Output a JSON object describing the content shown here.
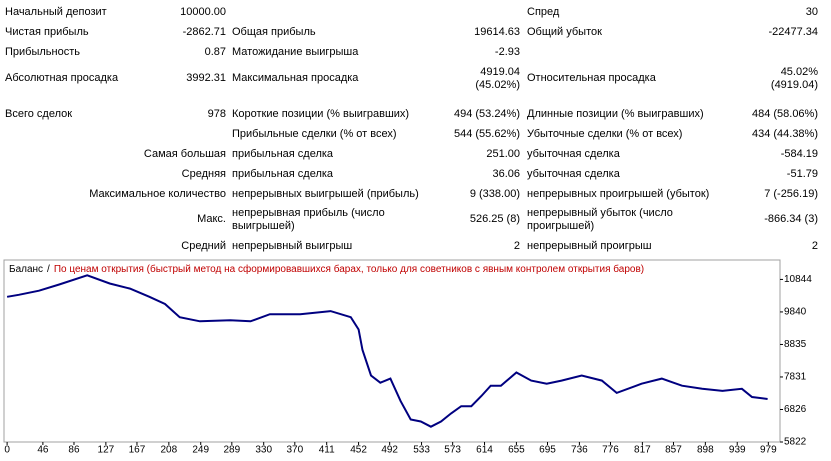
{
  "report": {
    "rows": [
      [
        "Начальный депозит",
        "10000.00",
        null,
        null,
        "Спред",
        "30"
      ],
      [
        "Чистая прибыль",
        "-2862.71",
        "Общая прибыль",
        "19614.63",
        "Общий убыток",
        "-22477.34"
      ],
      [
        "Прибыльность",
        "0.87",
        "Матожидание выигрыша",
        "-2.93",
        null,
        null
      ],
      [
        "Абсолютная просадка",
        "3992.31",
        "Максимальная просадка",
        [
          "4919.04",
          "(45.02%)"
        ],
        "Относительная просадка",
        [
          "45.02%",
          "(4919.04)"
        ]
      ],
      [
        "Всего сделок",
        "978",
        "Короткие позиции (% выигравших)",
        "494 (53.24%)",
        "Длинные позиции (% выигравших)",
        "484 (58.06%)"
      ],
      [
        null,
        null,
        "Прибыльные сделки (% от всех)",
        "544 (55.62%)",
        "Убыточные сделки (% от всех)",
        "434 (44.38%)"
      ],
      [
        null,
        "Самая большая",
        "прибыльная сделка",
        "251.00",
        "убыточная сделка",
        "-584.19"
      ],
      [
        null,
        "Средняя",
        "прибыльная сделка",
        "36.06",
        "убыточная сделка",
        "-51.79"
      ],
      [
        null,
        "Максимальное количество",
        "непрерывных выигрышей (прибыль)",
        "9 (338.00)",
        "непрерывных проигрышей (убыток)",
        "7 (-256.19)"
      ],
      [
        null,
        "Макс.",
        [
          "непрерывная прибыль (число",
          "выигрышей)"
        ],
        "526.25 (8)",
        [
          "непрерывный убыток (число",
          "проигрышей)"
        ],
        "-866.34 (3)"
      ],
      [
        null,
        "Средний",
        "непрерывный выигрыш",
        "2",
        "непрерывный проигрыш",
        "2"
      ]
    ]
  },
  "chart_data": {
    "type": "line",
    "separator": "/",
    "subtitle": "По ценам открытия (быстрый метод на сформировавшихся барах, только для советников с явным контролем открытия баров)",
    "x": [
      0,
      15,
      41,
      67,
      103,
      132,
      158,
      183,
      203,
      222,
      248,
      287,
      313,
      338,
      377,
      416,
      442,
      452,
      457,
      468,
      480,
      493,
      506,
      519,
      532,
      545,
      558,
      571,
      584,
      597,
      610,
      622,
      635,
      655,
      674,
      694,
      713,
      739,
      765,
      784,
      816,
      842,
      868,
      894,
      920,
      945,
      958,
      978
    ],
    "series": [
      {
        "name": "Баланс",
        "color": "#000080",
        "values": [
          10307,
          10370,
          10497,
          10686,
          10970,
          10718,
          10560,
          10307,
          10086,
          9676,
          9549,
          9581,
          9549,
          9770,
          9770,
          9865,
          9676,
          9297,
          8665,
          7875,
          7654,
          7781,
          7086,
          6518,
          6455,
          6296,
          6455,
          6707,
          6928,
          6928,
          7244,
          7560,
          7560,
          7970,
          7718,
          7623,
          7718,
          7875,
          7718,
          7339,
          7623,
          7781,
          7560,
          7465,
          7402,
          7465,
          7212,
          7149
        ]
      }
    ],
    "xlim": [
      -4,
      994
    ],
    "ylim": [
      5822,
      11444
    ],
    "xticks": [
      0,
      46,
      86,
      127,
      167,
      208,
      249,
      289,
      330,
      370,
      411,
      452,
      492,
      533,
      573,
      614,
      655,
      695,
      736,
      776,
      817,
      857,
      898,
      939,
      979
    ],
    "yticks": [
      5822,
      6826,
      7831,
      8835,
      9840,
      10844
    ],
    "subtitle_color": "#c00000"
  }
}
